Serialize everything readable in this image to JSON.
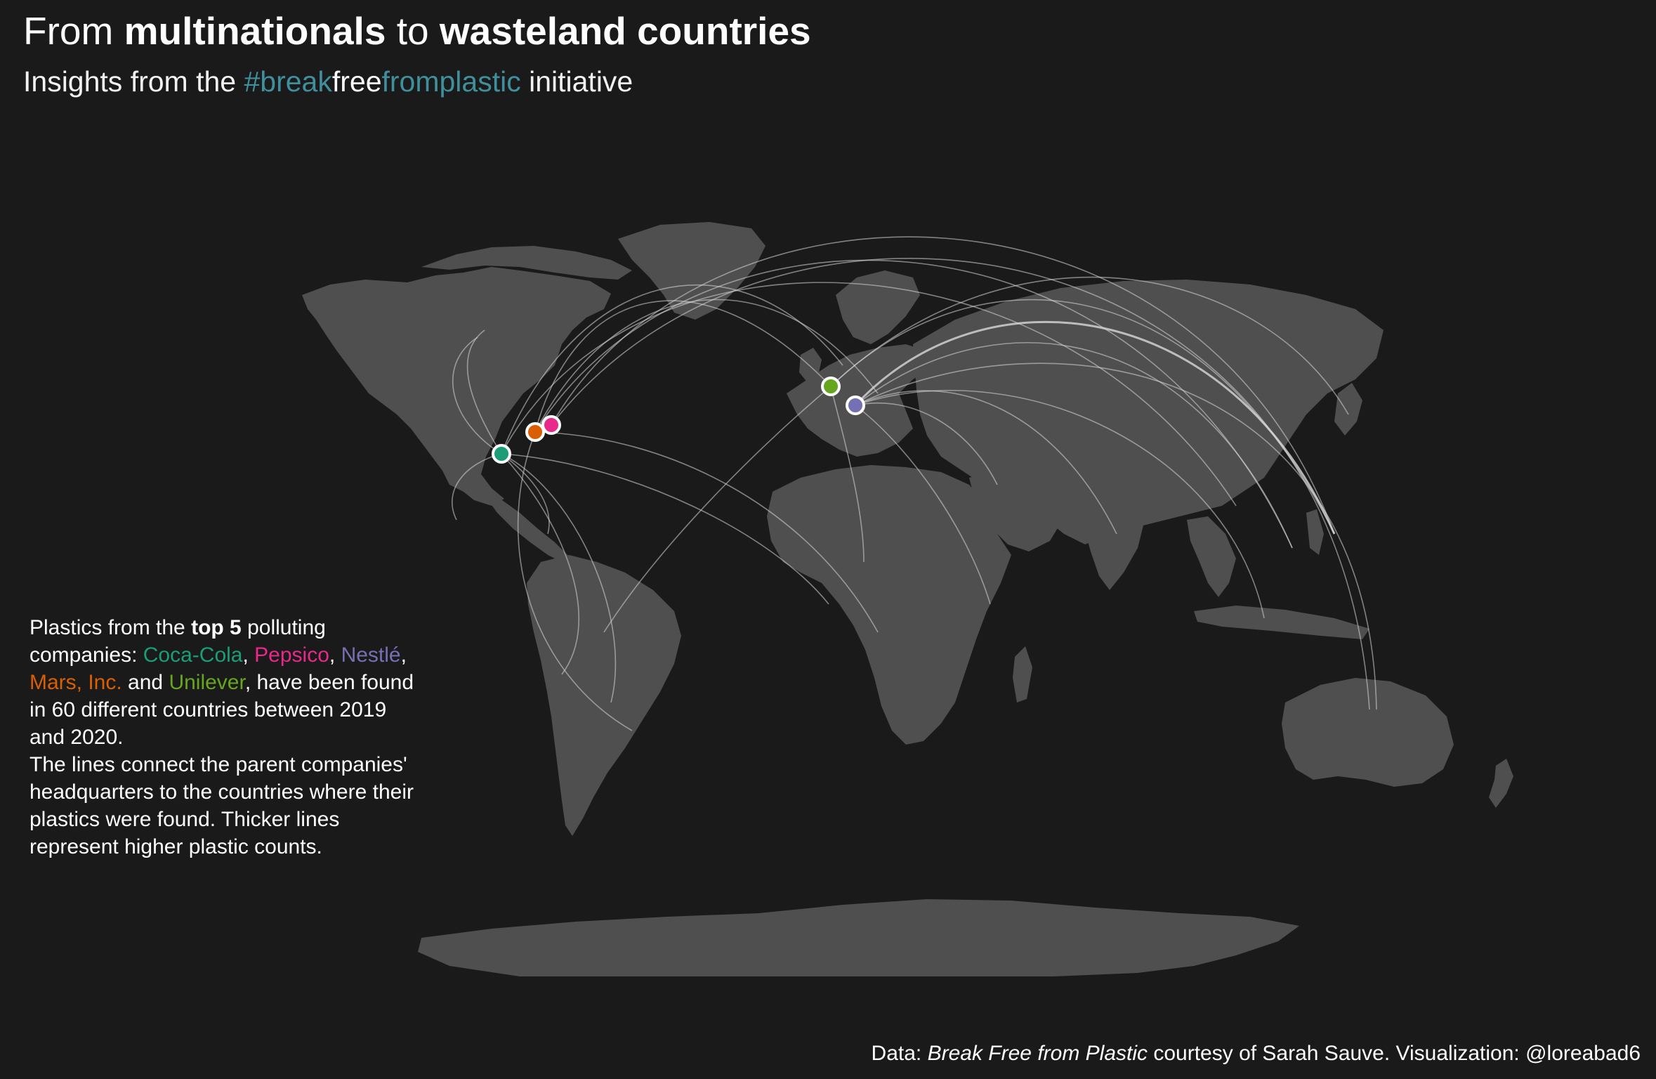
{
  "title": {
    "part1": "From ",
    "bold1": "multinationals",
    "part2": " to ",
    "bold2": "wasteland countries"
  },
  "subtitle": {
    "prefix": "Insights from the ",
    "tag_part1": "#break",
    "tag_part2": "free",
    "tag_part3": "fromplastic",
    "suffix": " initiative"
  },
  "annotation": {
    "p1": "Plastics from the ",
    "bold": "top 5",
    "p2": " polluting companies: ",
    "coca_cola": "Coca-Cola",
    "sep1": ", ",
    "pepsico": "Pepsico",
    "sep2": ", ",
    "nestle": "Nestlé",
    "sep3": ", ",
    "mars": "Mars, Inc.",
    "sep4": " and ",
    "unilever": "Unilever",
    "p3": ", have been found in 60 different countries between 2019 and 2020.",
    "p4": "The lines connect the parent companies' headquarters to the countries where their plastics were found. Thicker lines represent higher plastic counts."
  },
  "caption": {
    "prefix": "Data: ",
    "source": "Break Free from Plastic",
    "suffix": " courtesy of Sarah Sauve. Visualization: @loreabad6"
  },
  "colors": {
    "background": "#1a1a1a",
    "land": "#4f4f4f",
    "coca_cola": "#1b9e77",
    "pepsico": "#e7298a",
    "nestle": "#7570b3",
    "mars": "#d95f02",
    "unilever": "#66a61e",
    "hashtag": "#3f8f9c"
  },
  "headquarters": [
    {
      "company": "Coca-Cola",
      "lon": -84.4,
      "lat": 33.8,
      "color": "#1b9e77"
    },
    {
      "company": "Mars, Inc.",
      "lon": -77.2,
      "lat": 38.9,
      "color": "#d95f02"
    },
    {
      "company": "Pepsico",
      "lon": -73.7,
      "lat": 41.0,
      "color": "#e7298a"
    },
    {
      "company": "Unilever",
      "lon": 4.9,
      "lat": 51.9,
      "color": "#66a61e"
    },
    {
      "company": "Nestlé",
      "lon": 6.8,
      "lat": 46.5,
      "color": "#7570b3"
    }
  ],
  "countries_found": 60,
  "period": "2019–2020"
}
